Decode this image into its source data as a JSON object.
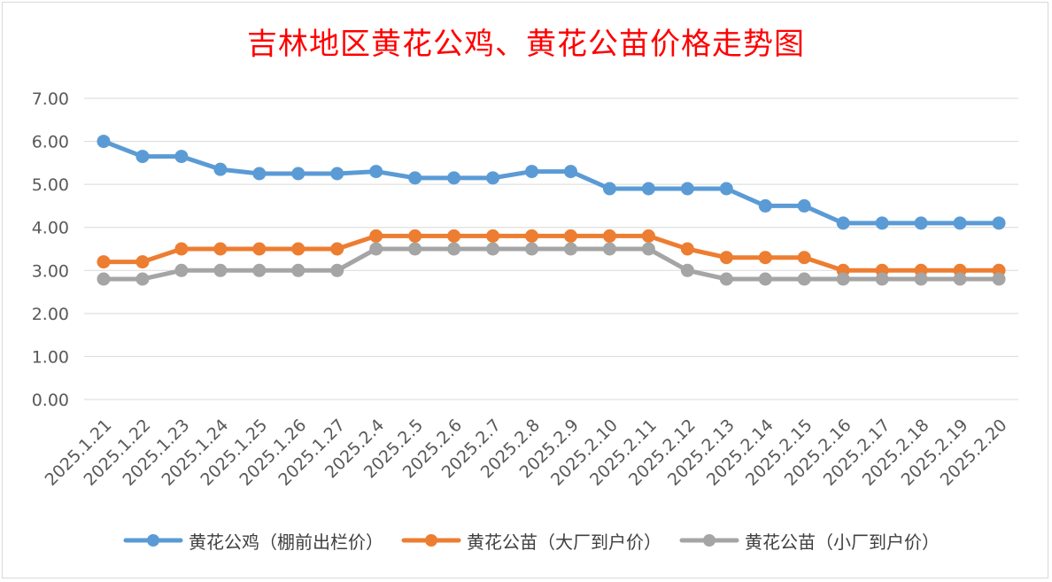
{
  "chart_data": {
    "type": "line",
    "title": "吉林地区黄花公鸡、黄花公苗价格走势图",
    "categories": [
      "2025.1.21",
      "2025.1.22",
      "2025.1.23",
      "2025.1.24",
      "2025.1.25",
      "2025.1.26",
      "2025.1.27",
      "2025.2.4",
      "2025.2.5",
      "2025.2.6",
      "2025.2.7",
      "2025.2.8",
      "2025.2.9",
      "2025.2.10",
      "2025.2.11",
      "2025.2.12",
      "2025.2.13",
      "2025.2.14",
      "2025.2.15",
      "2025.2.16",
      "2025.2.17",
      "2025.2.18",
      "2025.2.19",
      "2025.2.20"
    ],
    "series": [
      {
        "name": "黄花公鸡（棚前出栏价）",
        "color": "#5b9bd5",
        "values": [
          6.0,
          5.65,
          5.65,
          5.35,
          5.25,
          5.25,
          5.25,
          5.3,
          5.15,
          5.15,
          5.15,
          5.3,
          5.3,
          4.9,
          4.9,
          4.9,
          4.9,
          4.5,
          4.5,
          4.1,
          4.1,
          4.1,
          4.1,
          4.1
        ]
      },
      {
        "name": "黄花公苗（大厂到户价）",
        "color": "#ed7d31",
        "values": [
          3.2,
          3.2,
          3.5,
          3.5,
          3.5,
          3.5,
          3.5,
          3.8,
          3.8,
          3.8,
          3.8,
          3.8,
          3.8,
          3.8,
          3.8,
          3.5,
          3.3,
          3.3,
          3.3,
          3.0,
          3.0,
          3.0,
          3.0,
          3.0
        ]
      },
      {
        "name": "黄花公苗（小厂到户价）",
        "color": "#a5a5a5",
        "values": [
          2.8,
          2.8,
          3.0,
          3.0,
          3.0,
          3.0,
          3.0,
          3.5,
          3.5,
          3.5,
          3.5,
          3.5,
          3.5,
          3.5,
          3.5,
          3.0,
          2.8,
          2.8,
          2.8,
          2.8,
          2.8,
          2.8,
          2.8,
          2.8
        ]
      }
    ],
    "ylim": [
      0,
      7
    ],
    "yticks": [
      "0.00",
      "1.00",
      "2.00",
      "3.00",
      "4.00",
      "5.00",
      "6.00",
      "7.00"
    ],
    "grid": true,
    "legend_position": "bottom",
    "xlabel": "",
    "ylabel": ""
  }
}
